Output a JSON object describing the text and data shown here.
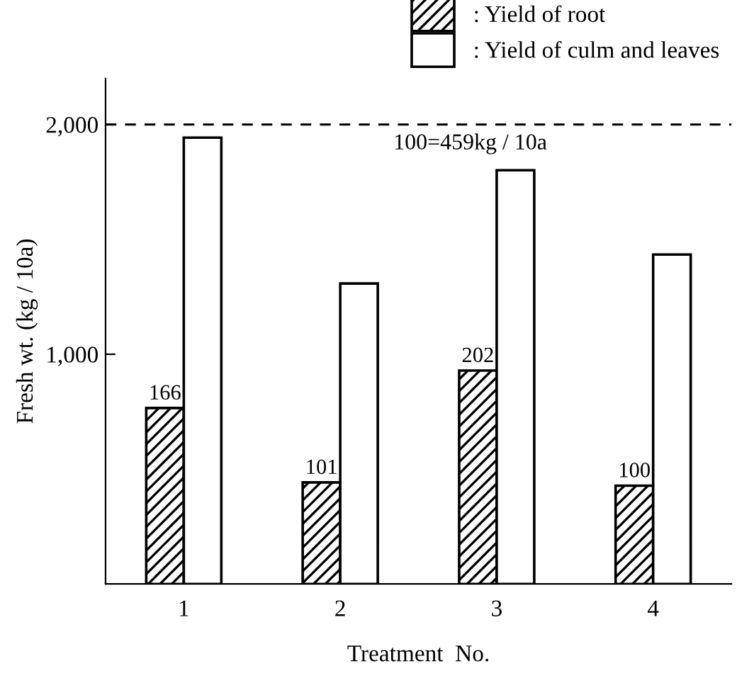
{
  "chart_data": {
    "type": "bar",
    "xlabel": "Treatment  No.",
    "ylabel": "Fresh wt. (kg / 10a)",
    "categories": [
      "1",
      "2",
      "3",
      "4"
    ],
    "series": [
      {
        "name": ": Yield of root",
        "color": "#000000",
        "values": [
          766,
          442,
          929,
          428
        ]
      },
      {
        "name": ": Yield of culm and leaves",
        "color": "#ffffff",
        "values": [
          1943,
          1308,
          1801,
          1434
        ]
      }
    ],
    "ylim": [
      0,
      2200
    ],
    "yticks": [
      {
        "value": 1000,
        "label": "1,000"
      },
      {
        "value": 2000,
        "label": "2,000"
      }
    ],
    "ref_lines": [
      {
        "axis": "y",
        "value": 2000,
        "line_style": "dashed",
        "color": "#000000"
      }
    ],
    "annotations": [
      "100=459kg / 10a",
      {
        "text": "166",
        "x": "1",
        "y": 766
      },
      {
        "text": "101",
        "x": "2",
        "y": 442
      },
      {
        "text": "202",
        "x": "3",
        "y": 929
      },
      {
        "text": "100",
        "x": "4",
        "y": 428
      }
    ],
    "grid": false,
    "legend": "top right"
  }
}
